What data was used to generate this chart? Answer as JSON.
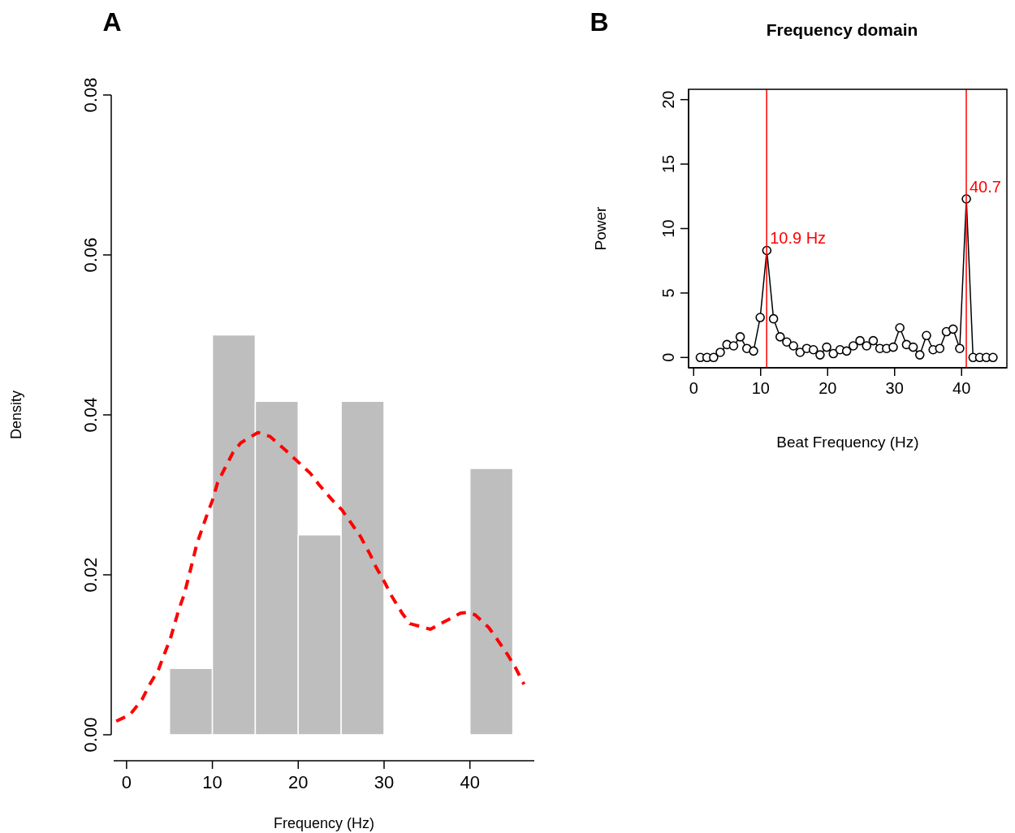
{
  "chart_data": [
    {
      "type": "histogram",
      "annotations": [
        "A"
      ],
      "xlabel": "Frequency (Hz)",
      "ylabel": "Density",
      "xlim": [
        -1.5,
        47.5
      ],
      "xticks": [
        0,
        10,
        20,
        30,
        40
      ],
      "ylim": [
        0,
        0.08
      ],
      "yticks": [
        {
          "value": 0,
          "label": "0.00"
        },
        0.02,
        0.04,
        0.06,
        0.08
      ],
      "series": [
        {
          "color": "#bebebe",
          "bins": [
            5,
            10,
            15,
            20,
            25,
            30,
            35,
            40,
            45
          ],
          "values": [
            0.0083,
            0.05,
            0.0417,
            0.025,
            0.0417,
            0,
            0,
            0.0333
          ]
        },
        {
          "type": "line",
          "color": "#ff0000",
          "line_style": "dashed",
          "x": [
            -1.2,
            0.4,
            1.8,
            2.7,
            3.7,
            4.3,
            5.1,
            6.1,
            6.7,
            7.3,
            8.2,
            9.4,
            10,
            10.6,
            11.3,
            12.4,
            13.3,
            15.3,
            16.7,
            18.6,
            19.8,
            21.4,
            22.4,
            24,
            25.1,
            26.4,
            27.3,
            28.4,
            29,
            30.2,
            30.8,
            32.1,
            33,
            35.4,
            36.8,
            38.9,
            39.6,
            40.6,
            42.2,
            43.2,
            44.4,
            45.3,
            46.3
          ],
          "values": [
            0.0017,
            0.0025,
            0.0044,
            0.0063,
            0.0081,
            0.0098,
            0.012,
            0.0157,
            0.0175,
            0.02,
            0.0239,
            0.0276,
            0.0293,
            0.0315,
            0.033,
            0.0353,
            0.0365,
            0.0378,
            0.0373,
            0.0355,
            0.0343,
            0.0327,
            0.0313,
            0.0293,
            0.0281,
            0.0261,
            0.0247,
            0.0225,
            0.0211,
            0.0188,
            0.0175,
            0.0152,
            0.0139,
            0.0132,
            0.014,
            0.0152,
            0.0153,
            0.015,
            0.0134,
            0.0119,
            0.01,
            0.0084,
            0.0063
          ]
        }
      ]
    },
    {
      "type": "line",
      "title": "Frequency domain",
      "annotations": [
        "B"
      ],
      "xlabel": "Beat Frequency (Hz)",
      "ylabel": "Power",
      "marker": "circle",
      "xlim": [
        -0.76,
        46.76
      ],
      "xticks": [
        0,
        10,
        20,
        30,
        40
      ],
      "ylim": [
        -0.8,
        20.8
      ],
      "yticks": [
        0,
        5,
        10,
        15,
        20
      ],
      "ref_lines": [
        {
          "axis": "x",
          "value": 10.9,
          "label": "10.9 Hz",
          "color": "#ff0000"
        },
        {
          "axis": "x",
          "value": 40.7,
          "label": "40.7",
          "color": "#ff0000"
        }
      ],
      "series": [
        {
          "color": "#000000",
          "x": [
            0.99,
            1.99,
            2.98,
            3.97,
            4.97,
            5.96,
            6.95,
            7.94,
            8.94,
            9.93,
            10.92,
            11.92,
            12.91,
            13.9,
            14.9,
            15.89,
            16.88,
            17.87,
            18.87,
            19.86,
            20.85,
            21.85,
            22.84,
            23.83,
            24.83,
            25.82,
            26.81,
            27.8,
            28.8,
            29.79,
            30.78,
            31.78,
            32.77,
            33.76,
            34.76,
            35.75,
            36.74,
            37.73,
            38.73,
            39.72,
            40.71,
            41.71,
            42.7,
            43.69,
            44.69
          ],
          "values": [
            0,
            0,
            0,
            0.4,
            1,
            0.9,
            1.6,
            0.7,
            0.5,
            3.1,
            8.3,
            3,
            1.6,
            1.2,
            0.9,
            0.4,
            0.7,
            0.6,
            0.2,
            0.8,
            0.3,
            0.6,
            0.5,
            0.9,
            1.3,
            0.9,
            1.3,
            0.7,
            0.7,
            0.8,
            2.3,
            1,
            0.8,
            0.2,
            1.7,
            0.6,
            0.7,
            2,
            2.2,
            0.7,
            12.3,
            0,
            0,
            0,
            0
          ]
        }
      ]
    }
  ]
}
